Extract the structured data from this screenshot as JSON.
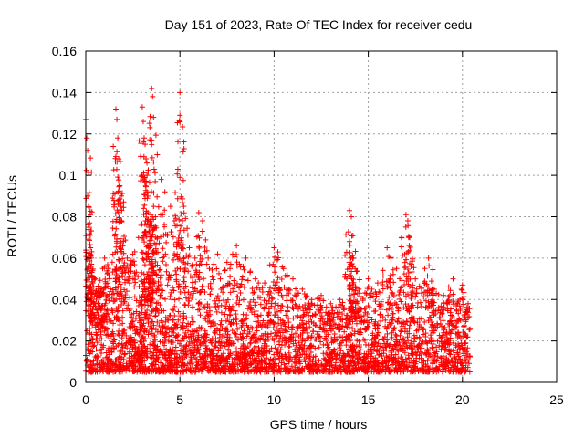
{
  "chart_data": {
    "type": "scatter",
    "title": "Day 151 of 2023, Rate Of TEC Index for receiver cedu",
    "xlabel": "GPS time / hours",
    "ylabel": "ROTI / TECUs",
    "xlim": [
      0,
      25
    ],
    "ylim": [
      0,
      0.16
    ],
    "xticks": [
      0,
      5,
      10,
      15,
      20,
      25
    ],
    "xtick_labels": [
      "0",
      "5",
      "10",
      "15",
      "20",
      "25"
    ],
    "yticks": [
      0,
      0.02,
      0.04,
      0.06,
      0.08,
      0.1,
      0.12,
      0.14,
      0.16
    ],
    "ytick_labels": [
      "0",
      "0.02",
      "0.04",
      "0.06",
      "0.08",
      "0.1",
      "0.12",
      "0.14",
      "0.16"
    ],
    "grid": true,
    "marker": "plus",
    "color": "#ff0000",
    "data_extent_hours": [
      0,
      20.4
    ],
    "series": [
      {
        "points": [
          [
            0.0,
            0.127
          ],
          [
            0.05,
            0.118
          ],
          [
            0.1,
            0.112
          ],
          [
            0.1,
            0.09
          ],
          [
            0.15,
            0.08
          ],
          [
            0.2,
            0.077
          ],
          [
            0.25,
            0.065
          ],
          [
            0.3,
            0.06
          ],
          [
            0.5,
            0.05
          ],
          [
            0.7,
            0.045
          ],
          [
            0.9,
            0.055
          ],
          [
            1.0,
            0.06
          ],
          [
            1.2,
            0.055
          ],
          [
            1.4,
            0.058
          ],
          [
            1.6,
            0.132
          ],
          [
            1.65,
            0.127
          ],
          [
            1.7,
            0.118
          ],
          [
            1.75,
            0.108
          ],
          [
            1.8,
            0.095
          ],
          [
            1.85,
            0.085
          ],
          [
            1.9,
            0.078
          ],
          [
            2.2,
            0.06
          ],
          [
            2.5,
            0.062
          ],
          [
            2.8,
            0.07
          ],
          [
            3.0,
            0.133
          ],
          [
            3.05,
            0.126
          ],
          [
            3.1,
            0.118
          ],
          [
            3.15,
            0.115
          ],
          [
            3.2,
            0.108
          ],
          [
            3.25,
            0.1
          ],
          [
            3.3,
            0.09
          ],
          [
            3.3,
            0.082
          ],
          [
            3.5,
            0.142
          ],
          [
            3.55,
            0.138
          ],
          [
            3.6,
            0.128
          ],
          [
            3.6,
            0.085
          ],
          [
            3.7,
            0.08
          ],
          [
            3.8,
            0.07
          ],
          [
            4.0,
            0.098
          ],
          [
            4.2,
            0.092
          ],
          [
            4.5,
            0.085
          ],
          [
            4.7,
            0.078
          ],
          [
            5.0,
            0.14
          ],
          [
            5.0,
            0.129
          ],
          [
            5.0,
            0.099
          ],
          [
            5.2,
            0.085
          ],
          [
            5.5,
            0.065
          ],
          [
            5.8,
            0.06
          ],
          [
            6.0,
            0.082
          ],
          [
            6.2,
            0.078
          ],
          [
            6.5,
            0.06
          ],
          [
            7.0,
            0.062
          ],
          [
            7.5,
            0.058
          ],
          [
            7.8,
            0.062
          ],
          [
            8.0,
            0.066
          ],
          [
            8.5,
            0.06
          ],
          [
            9.0,
            0.05
          ],
          [
            9.5,
            0.048
          ],
          [
            10.0,
            0.065
          ],
          [
            10.2,
            0.063
          ],
          [
            10.5,
            0.055
          ],
          [
            11.0,
            0.05
          ],
          [
            11.5,
            0.045
          ],
          [
            12.0,
            0.04
          ],
          [
            12.5,
            0.042
          ],
          [
            13.0,
            0.038
          ],
          [
            13.5,
            0.04
          ],
          [
            14.0,
            0.083
          ],
          [
            14.1,
            0.08
          ],
          [
            14.0,
            0.068
          ],
          [
            14.2,
            0.06
          ],
          [
            14.3,
            0.055
          ],
          [
            14.5,
            0.045
          ],
          [
            15.0,
            0.05
          ],
          [
            15.5,
            0.048
          ],
          [
            16.0,
            0.065
          ],
          [
            16.2,
            0.06
          ],
          [
            16.5,
            0.055
          ],
          [
            17.0,
            0.081
          ],
          [
            17.1,
            0.078
          ],
          [
            17.2,
            0.07
          ],
          [
            17.5,
            0.05
          ],
          [
            18.0,
            0.055
          ],
          [
            18.2,
            0.06
          ],
          [
            18.5,
            0.045
          ],
          [
            19.0,
            0.042
          ],
          [
            19.5,
            0.05
          ],
          [
            20.0,
            0.047
          ],
          [
            20.3,
            0.038
          ]
        ],
        "dense_band": [
          0.005,
          0.03
        ]
      }
    ]
  }
}
